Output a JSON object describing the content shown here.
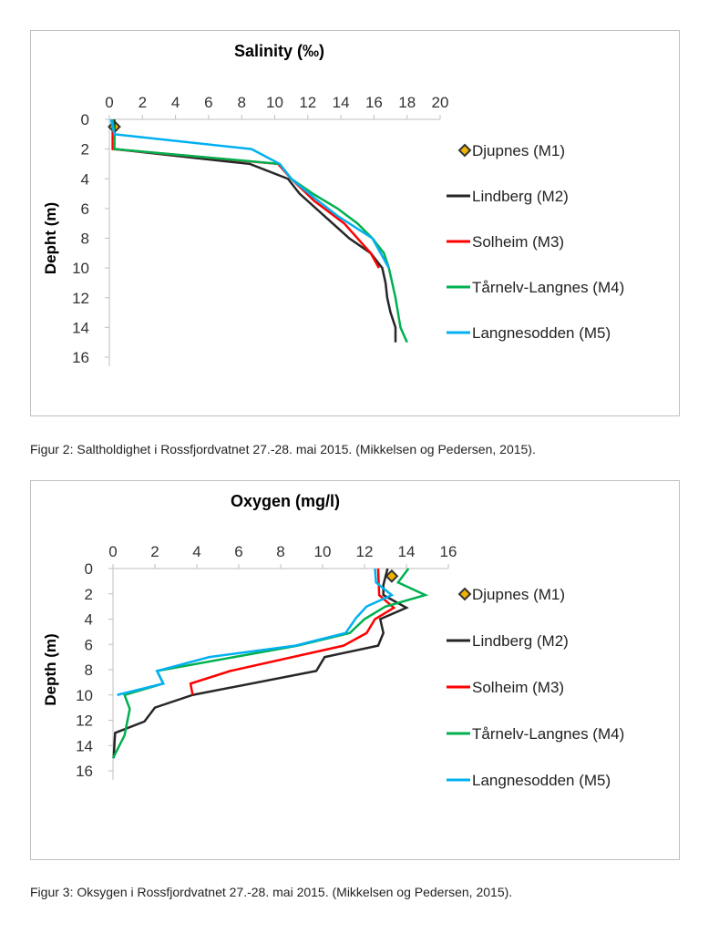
{
  "colors": {
    "M1": "#f0b400",
    "M2": "#262626",
    "M3": "#ff0000",
    "M4": "#00b050",
    "M5": "#00b0f0"
  },
  "captions": [
    "Figur 2: Saltholdighet i Rossfjordvatnet 27.-28. mai 2015. (Mikkelsen og Pedersen, 2015).",
    "Figur 3: Oksygen i Rossfjordvatnet 27.-28. mai 2015. (Mikkelsen og Pedersen, 2015)."
  ],
  "chart_data": [
    {
      "type": "line",
      "title": "Salinity (‰)",
      "xlabel": "",
      "ylabel": "Depht (m)",
      "xlim": [
        0,
        20
      ],
      "ylim": [
        0,
        16
      ],
      "y_inverted": true,
      "x_axis_position": "top",
      "legend": "right",
      "xticks": [
        "0",
        "2",
        "4",
        "6",
        "8",
        "10",
        "12",
        "14",
        "16",
        "18",
        "20"
      ],
      "yticks": [
        "0",
        "2",
        "4",
        "6",
        "8",
        "10",
        "12",
        "14",
        "16"
      ],
      "series": [
        {
          "name": "Djupnes (M1)",
          "key": "M1",
          "marker": "diamond",
          "points": [
            [
              0.3,
              0.5
            ]
          ]
        },
        {
          "name": "Lindberg (M2)",
          "key": "M2",
          "points": [
            [
              0.3,
              0
            ],
            [
              0.3,
              2
            ],
            [
              8.5,
              3
            ],
            [
              10.8,
              4
            ],
            [
              11.5,
              5
            ],
            [
              12.5,
              6
            ],
            [
              13.5,
              7
            ],
            [
              14.5,
              8
            ],
            [
              15.8,
              9
            ],
            [
              16.5,
              10
            ],
            [
              16.7,
              11
            ],
            [
              16.8,
              12
            ],
            [
              17,
              13
            ],
            [
              17.3,
              14
            ],
            [
              17.3,
              15
            ]
          ]
        },
        {
          "name": "Solheim (M3)",
          "key": "M3",
          "points": [
            [
              0.2,
              0
            ],
            [
              0.2,
              2
            ],
            [
              10.2,
              3
            ],
            [
              11,
              4
            ],
            [
              12.4,
              5.5
            ],
            [
              14.2,
              7
            ],
            [
              15.8,
              9
            ],
            [
              16.3,
              10
            ]
          ]
        },
        {
          "name": "Tårnelv-Langnes (M4)",
          "key": "M4",
          "points": [
            [
              0.2,
              0
            ],
            [
              0.3,
              1
            ],
            [
              0.3,
              2
            ],
            [
              10.3,
              3
            ],
            [
              11,
              4
            ],
            [
              12.3,
              5
            ],
            [
              13.8,
              6
            ],
            [
              15,
              7
            ],
            [
              15.9,
              8
            ],
            [
              16.6,
              9
            ],
            [
              16.9,
              10
            ],
            [
              17.3,
              12
            ],
            [
              17.6,
              14
            ],
            [
              18,
              15
            ]
          ]
        },
        {
          "name": "Langnesodden (M5)",
          "key": "M5",
          "points": [
            [
              0.1,
              0
            ],
            [
              0.3,
              1
            ],
            [
              8.6,
              2
            ],
            [
              10.3,
              3
            ],
            [
              11,
              4
            ],
            [
              12.3,
              5.2
            ],
            [
              13.8,
              6.5
            ],
            [
              15.9,
              8
            ],
            [
              16.4,
              9
            ],
            [
              16.9,
              10
            ]
          ]
        }
      ]
    },
    {
      "type": "line",
      "title": "Oxygen (mg/l)",
      "xlabel": "",
      "ylabel": "Depth  (m)",
      "xlim": [
        0,
        16
      ],
      "ylim": [
        0,
        16
      ],
      "y_inverted": true,
      "x_axis_position": "top",
      "legend": "right",
      "xticks": [
        "0",
        "2",
        "4",
        "6",
        "8",
        "10",
        "12",
        "14",
        "16"
      ],
      "yticks": [
        "0",
        "2",
        "4",
        "6",
        "8",
        "10",
        "12",
        "14",
        "16"
      ],
      "series": [
        {
          "name": "Djupnes (M1)",
          "key": "M1",
          "marker": "diamond",
          "points": [
            [
              13.3,
              0.6
            ]
          ]
        },
        {
          "name": "Lindberg (M2)",
          "key": "M2",
          "points": [
            [
              13.1,
              0
            ],
            [
              12.9,
              1.3
            ],
            [
              12.9,
              2.1
            ],
            [
              14,
              3.1
            ],
            [
              12.75,
              4
            ],
            [
              12.9,
              5.1
            ],
            [
              12.65,
              6.1
            ],
            [
              10.1,
              7
            ],
            [
              9.7,
              8.1
            ],
            [
              3.8,
              10
            ],
            [
              2,
              11
            ],
            [
              1.5,
              12.1
            ],
            [
              0.1,
              13
            ],
            [
              0.03,
              15
            ]
          ]
        },
        {
          "name": "Solheim (M3)",
          "key": "M3",
          "points": [
            [
              12.65,
              0
            ],
            [
              12.7,
              2.1
            ],
            [
              13.4,
              3.1
            ],
            [
              12.5,
              4
            ],
            [
              12.1,
              5.1
            ],
            [
              11,
              6.1
            ],
            [
              5.6,
              8.1
            ],
            [
              3.7,
              9.1
            ],
            [
              3.8,
              10
            ]
          ]
        },
        {
          "name": "Tårnelv-Langnes (M4)",
          "key": "M4",
          "points": [
            [
              14.1,
              0
            ],
            [
              13.6,
              1.1
            ],
            [
              14.9,
              2.1
            ],
            [
              13,
              3
            ],
            [
              12,
              4
            ],
            [
              11.3,
              5.1
            ],
            [
              8.8,
              6.1
            ],
            [
              2.1,
              8.1
            ],
            [
              2.4,
              9.1
            ],
            [
              0.55,
              10
            ],
            [
              0.8,
              11.1
            ],
            [
              0.55,
              13.2
            ],
            [
              0,
              15
            ]
          ]
        },
        {
          "name": "Langnesodden (M5)",
          "key": "M5",
          "points": [
            [
              12.5,
              0
            ],
            [
              12.55,
              1.1
            ],
            [
              13.3,
              2.1
            ],
            [
              12.1,
              3
            ],
            [
              11.6,
              3.9
            ],
            [
              11.1,
              5.1
            ],
            [
              8.7,
              6.1
            ],
            [
              4.6,
              7
            ],
            [
              2.1,
              8.1
            ],
            [
              2.4,
              9.1
            ],
            [
              0.2,
              10
            ]
          ]
        }
      ]
    }
  ]
}
